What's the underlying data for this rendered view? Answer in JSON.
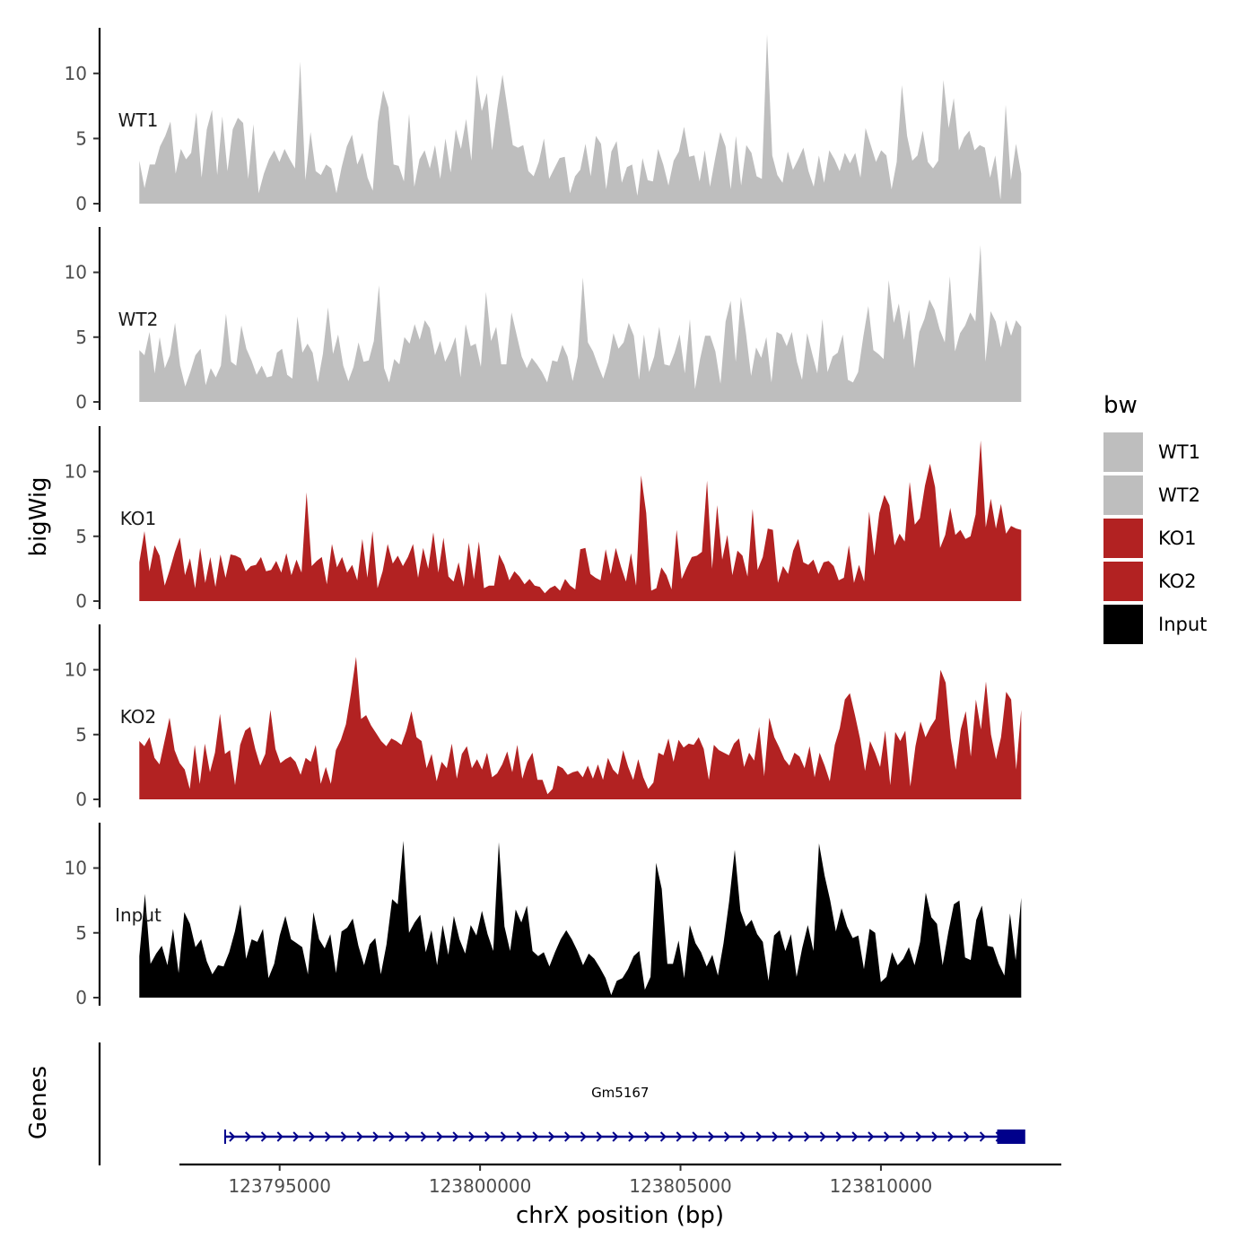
{
  "chart_data": {
    "type": "area",
    "title": "",
    "ylabel": "bigWig",
    "xlabel": "chrX position (bp)",
    "xlim": [
      123792500,
      123814500
    ],
    "ylim": [
      0,
      13.5
    ],
    "yticks": [
      0,
      5,
      10
    ],
    "xticks": [
      123795000,
      123800000,
      123805000,
      123810000
    ],
    "data_xrange": [
      123791500,
      123813500
    ],
    "legend": {
      "title": "bw",
      "position": "right"
    },
    "series": [
      {
        "name": "WT1",
        "color": "#bebebe",
        "values": [
          3.3,
          1.2,
          3,
          3,
          4.4,
          5.2,
          6.3,
          2.3,
          4.2,
          3.4,
          3.9,
          7,
          2,
          5.7,
          7.2,
          2.2,
          6.7,
          2.5,
          5.7,
          6.6,
          6.2,
          1.9,
          6.1,
          0.8,
          2.3,
          3.4,
          4.1,
          3.2,
          4.2,
          3.4,
          2.7,
          10.9,
          1.8,
          5.5,
          2.5,
          2.2,
          3,
          2.7,
          0.8,
          2.8,
          4.4,
          5.3,
          3,
          3.9,
          2,
          1,
          6.3,
          8.7,
          7.4,
          3,
          2.9,
          1.7,
          6.9,
          1.3,
          3.4,
          4.1,
          2.7,
          4.5,
          1.9,
          5,
          2.4,
          5.7,
          4.2,
          6.5,
          3.3,
          9.9,
          7.1,
          8.5,
          4.1,
          7.3,
          9.9,
          7.2,
          4.5,
          4.3,
          4.5,
          2.5,
          2.1,
          3.2,
          5,
          1.9,
          2.7,
          3.5,
          3.6,
          0.8,
          2.1,
          2.6,
          4.6,
          2.1,
          5.2,
          4.6,
          1.1,
          4,
          4.8,
          1.6,
          2.8,
          3,
          0.6,
          3.5,
          1.8,
          1.7,
          4.2,
          3,
          1.4,
          3.3,
          4,
          5.9,
          3.6,
          3.7,
          1.7,
          4.1,
          1.3,
          3.5,
          5.5,
          4.4,
          1.1,
          5.2,
          1.4,
          4.5,
          3.9,
          2.1,
          1.9,
          13,
          3.7,
          2.2,
          1.6,
          4,
          2.6,
          3.4,
          4.3,
          2.5,
          1.3,
          3.7,
          1.6,
          4.1,
          3.4,
          2.5,
          3.9,
          3.1,
          3.9,
          2,
          5.8,
          4.5,
          3.2,
          4.1,
          3.7,
          1.1,
          3.2,
          9.1,
          5.2,
          3.3,
          3.7,
          5.6,
          3.2,
          2.7,
          3.3,
          9.5,
          5.8,
          8.1,
          4.1,
          5.1,
          5.6,
          4.1,
          4.5,
          4.3,
          2,
          3.7,
          0.3,
          7.6,
          1.8,
          4.6,
          2.3
        ]
      },
      {
        "name": "WT2",
        "color": "#bebebe",
        "values": [
          4,
          3.6,
          5.4,
          2.2,
          5,
          2.6,
          3.6,
          6.1,
          2.8,
          1.2,
          2.3,
          3.6,
          4.1,
          1.3,
          2.6,
          1.9,
          2.8,
          6.8,
          3.1,
          2.8,
          5.9,
          4.1,
          3.2,
          2.1,
          2.8,
          1.9,
          2,
          3.8,
          4.1,
          2.1,
          1.8,
          6.6,
          3.8,
          4.5,
          3.8,
          1.5,
          3.7,
          7.3,
          3.7,
          5.2,
          2.8,
          1.6,
          2.7,
          4.6,
          3.1,
          3.2,
          4.7,
          9,
          2.6,
          1.5,
          3.3,
          2.9,
          5,
          4.5,
          6,
          4.8,
          6.3,
          5.7,
          3.6,
          4.7,
          3.1,
          3.9,
          5,
          1.9,
          6,
          4.3,
          4.5,
          2.7,
          8.5,
          4.7,
          5.8,
          2.9,
          2.9,
          6.9,
          5.2,
          3.5,
          2.6,
          3.4,
          2.9,
          2.3,
          1.5,
          3.2,
          3.1,
          4.4,
          3.5,
          1.6,
          3.5,
          9.6,
          4.6,
          3.9,
          2.8,
          1.8,
          3.1,
          5.3,
          4.1,
          4.6,
          6.1,
          5.1,
          1.7,
          5.2,
          2.3,
          3.5,
          5.8,
          2.9,
          2.8,
          3.8,
          5.2,
          2.2,
          6.4,
          1,
          3.3,
          5.1,
          5.1,
          3.9,
          1.4,
          6.2,
          7.8,
          3.1,
          8.1,
          5.3,
          2,
          4.2,
          3.4,
          5,
          1.5,
          5.4,
          5.2,
          4.3,
          5.4,
          3.1,
          1.7,
          5.3,
          3.7,
          2.2,
          6.4,
          2.3,
          3.5,
          3.8,
          5.2,
          1.7,
          1.5,
          2.3,
          5,
          7.4,
          4,
          3.7,
          3.3,
          9.4,
          6.1,
          7.6,
          4.8,
          7.1,
          2.6,
          5.4,
          6.4,
          7.9,
          7.1,
          5.6,
          4.6,
          9.7,
          3.9,
          5.3,
          5.9,
          6.9,
          6.2,
          12.1,
          3.1,
          7,
          6.2,
          4.2,
          6.3,
          5.1,
          6.3,
          5.8
        ]
      },
      {
        "name": "KO1",
        "color": "#b22222",
        "values": [
          3,
          5.4,
          2.3,
          4.3,
          3.5,
          1.2,
          2.4,
          3.8,
          4.9,
          2,
          3.3,
          1,
          4.1,
          1.4,
          3.4,
          1.1,
          3.6,
          1.8,
          3.6,
          3.5,
          3.3,
          2.3,
          2.7,
          2.8,
          3.4,
          2.3,
          2.4,
          3.1,
          2.2,
          3.7,
          2,
          3.2,
          2.2,
          8.4,
          2.7,
          3.1,
          3.4,
          1.3,
          4.4,
          2.6,
          3.4,
          2.2,
          2.8,
          1.6,
          4.8,
          1.8,
          5.4,
          1,
          2.3,
          4.4,
          2.9,
          3.5,
          2.7,
          3.4,
          4.4,
          1.8,
          4.1,
          2.5,
          5.3,
          2.2,
          4.9,
          1.9,
          1.5,
          3,
          1.1,
          4.5,
          1.7,
          4.6,
          1,
          1.2,
          1.2,
          3.6,
          2.8,
          1.6,
          2.3,
          1.9,
          1.3,
          1.7,
          1.2,
          1.1,
          0.6,
          1,
          1.2,
          0.8,
          1.7,
          1.2,
          0.9,
          4,
          4.1,
          2.1,
          1.8,
          1.6,
          4,
          2.1,
          4.1,
          2.7,
          1.5,
          3.7,
          1.2,
          9.7,
          6.8,
          0.8,
          1,
          2.6,
          2,
          0.9,
          5.5,
          1.7,
          2.6,
          3.4,
          3.5,
          3.8,
          9.3,
          2.5,
          7.4,
          3.2,
          5.1,
          2,
          3.9,
          3.5,
          1.9,
          7.1,
          2.4,
          3.4,
          5.6,
          5.5,
          1.4,
          2.7,
          2.1,
          3.9,
          4.8,
          3,
          2.8,
          3.2,
          2.1,
          3,
          3.1,
          2.7,
          1.6,
          1.8,
          4.3,
          1.4,
          2.8,
          1.5,
          6.9,
          3.5,
          6.8,
          8.2,
          7.4,
          4.3,
          5.2,
          4.6,
          9.2,
          5.9,
          6.4,
          8.9,
          10.6,
          8.8,
          4.1,
          5.1,
          7.2,
          5.1,
          5.5,
          4.8,
          5,
          6.7,
          12.4,
          5.7,
          7.9,
          5.6,
          7.5,
          5.2,
          5.8,
          5.6,
          5.5
        ]
      },
      {
        "name": "KO2",
        "color": "#b22222",
        "values": [
          4.5,
          4.1,
          4.8,
          3.2,
          2.7,
          4.5,
          6.3,
          3.8,
          2.8,
          2.3,
          0.8,
          4.2,
          1.2,
          4.3,
          2.1,
          3.6,
          6.6,
          3.5,
          3.8,
          1.1,
          4.2,
          5.3,
          5.6,
          3.9,
          2.6,
          3.5,
          6.9,
          3.9,
          2.8,
          3.1,
          3.3,
          2.9,
          1.9,
          3.2,
          2.9,
          4.2,
          1.2,
          2.5,
          1.2,
          3.8,
          4.6,
          5.8,
          8.2,
          11,
          6.2,
          6.5,
          5.7,
          5.1,
          4.5,
          4.1,
          4.7,
          4.5,
          4.2,
          5.3,
          6.8,
          4.8,
          4.5,
          2.4,
          3.5,
          1.4,
          2.9,
          2.4,
          4.3,
          1.6,
          3.5,
          4.1,
          2.4,
          3.1,
          2.3,
          3.6,
          1.7,
          2,
          2.7,
          3.7,
          2.1,
          4.2,
          1.6,
          2.9,
          3.6,
          1.5,
          1.5,
          0.4,
          0.8,
          2.6,
          2.4,
          1.9,
          2.1,
          2.2,
          1.7,
          2.6,
          1.6,
          2.7,
          1.5,
          3.2,
          2.3,
          1.9,
          3.8,
          2.5,
          1.5,
          3.1,
          1.7,
          0.8,
          1.3,
          3.6,
          3.4,
          4.7,
          2.9,
          4.6,
          4,
          4.3,
          4.2,
          4.8,
          3.9,
          1.5,
          4.2,
          3.8,
          3.6,
          3.4,
          4.3,
          4.7,
          2.5,
          3.6,
          3,
          5.6,
          1.8,
          6.3,
          4.8,
          4,
          3.1,
          2.6,
          3.6,
          3.3,
          2.4,
          4.1,
          1.7,
          3.6,
          2.6,
          1.4,
          4.2,
          5.5,
          7.7,
          8.2,
          6.5,
          4.7,
          2.2,
          4.5,
          3.6,
          2.5,
          5.3,
          1.1,
          5.2,
          4.5,
          5.3,
          1,
          4.1,
          6,
          4.8,
          5.6,
          6.2,
          10,
          9,
          4.7,
          2.3,
          5.4,
          6.8,
          3.3,
          7.7,
          5.4,
          9.1,
          5,
          3.1,
          4.8,
          8.3,
          7.7,
          2.3,
          6.9
        ]
      },
      {
        "name": "Input",
        "color": "#000000",
        "values": [
          3.2,
          8,
          2.6,
          3.4,
          4,
          2.5,
          5.3,
          1.9,
          6.6,
          5.7,
          3.9,
          4.5,
          2.8,
          1.8,
          2.5,
          2.4,
          3.5,
          5.1,
          7.2,
          3,
          4.5,
          4.3,
          5.3,
          1.5,
          2.6,
          4.8,
          6.3,
          4.5,
          4.2,
          3.9,
          1.8,
          6.6,
          4.5,
          3.8,
          4.9,
          1.9,
          5.1,
          5.4,
          6.1,
          4,
          2.5,
          4.1,
          4.6,
          1.8,
          4.1,
          7.6,
          7.2,
          12.1,
          5,
          5.8,
          6.4,
          3.5,
          5.2,
          2.5,
          5.6,
          3.3,
          6.3,
          4.5,
          3.4,
          5.6,
          4.8,
          6.7,
          4.9,
          3.6,
          12,
          5.5,
          3.6,
          6.8,
          5.8,
          7.1,
          3.6,
          3.2,
          3.5,
          2.4,
          3.5,
          4.5,
          5.2,
          4.5,
          3.6,
          2.5,
          3.4,
          3,
          2.3,
          1.5,
          0.2,
          1.3,
          1.5,
          2.2,
          3.2,
          3.6,
          0.6,
          1.6,
          10.4,
          8.4,
          2.6,
          2.6,
          4.4,
          1.5,
          5.6,
          4.2,
          3.5,
          2.4,
          3.3,
          1.7,
          4.2,
          7.4,
          11.4,
          6.7,
          5.5,
          6,
          4.9,
          4.3,
          1.3,
          4.8,
          5.2,
          3.6,
          4.9,
          1.6,
          3.8,
          5.6,
          3.6,
          11.9,
          9.4,
          7.5,
          5.1,
          6.9,
          5.5,
          4.6,
          4.8,
          2.2,
          5.3,
          5,
          1.2,
          1.6,
          3.5,
          2.5,
          3,
          3.9,
          2.5,
          4.3,
          8.1,
          6.2,
          5.7,
          2.5,
          5,
          7.2,
          7.5,
          3.1,
          2.9,
          6,
          7.1,
          4,
          3.9,
          2.6,
          1.7,
          6.5,
          2.9,
          7.7
        ]
      }
    ],
    "genes": [
      {
        "name": "Gm5167",
        "start": 123793640,
        "end": 123813350,
        "strand": "+",
        "exon_start": 123812900,
        "exon_end": 123813600,
        "color": "#00008b"
      }
    ],
    "genes_panel_label": "Genes"
  }
}
